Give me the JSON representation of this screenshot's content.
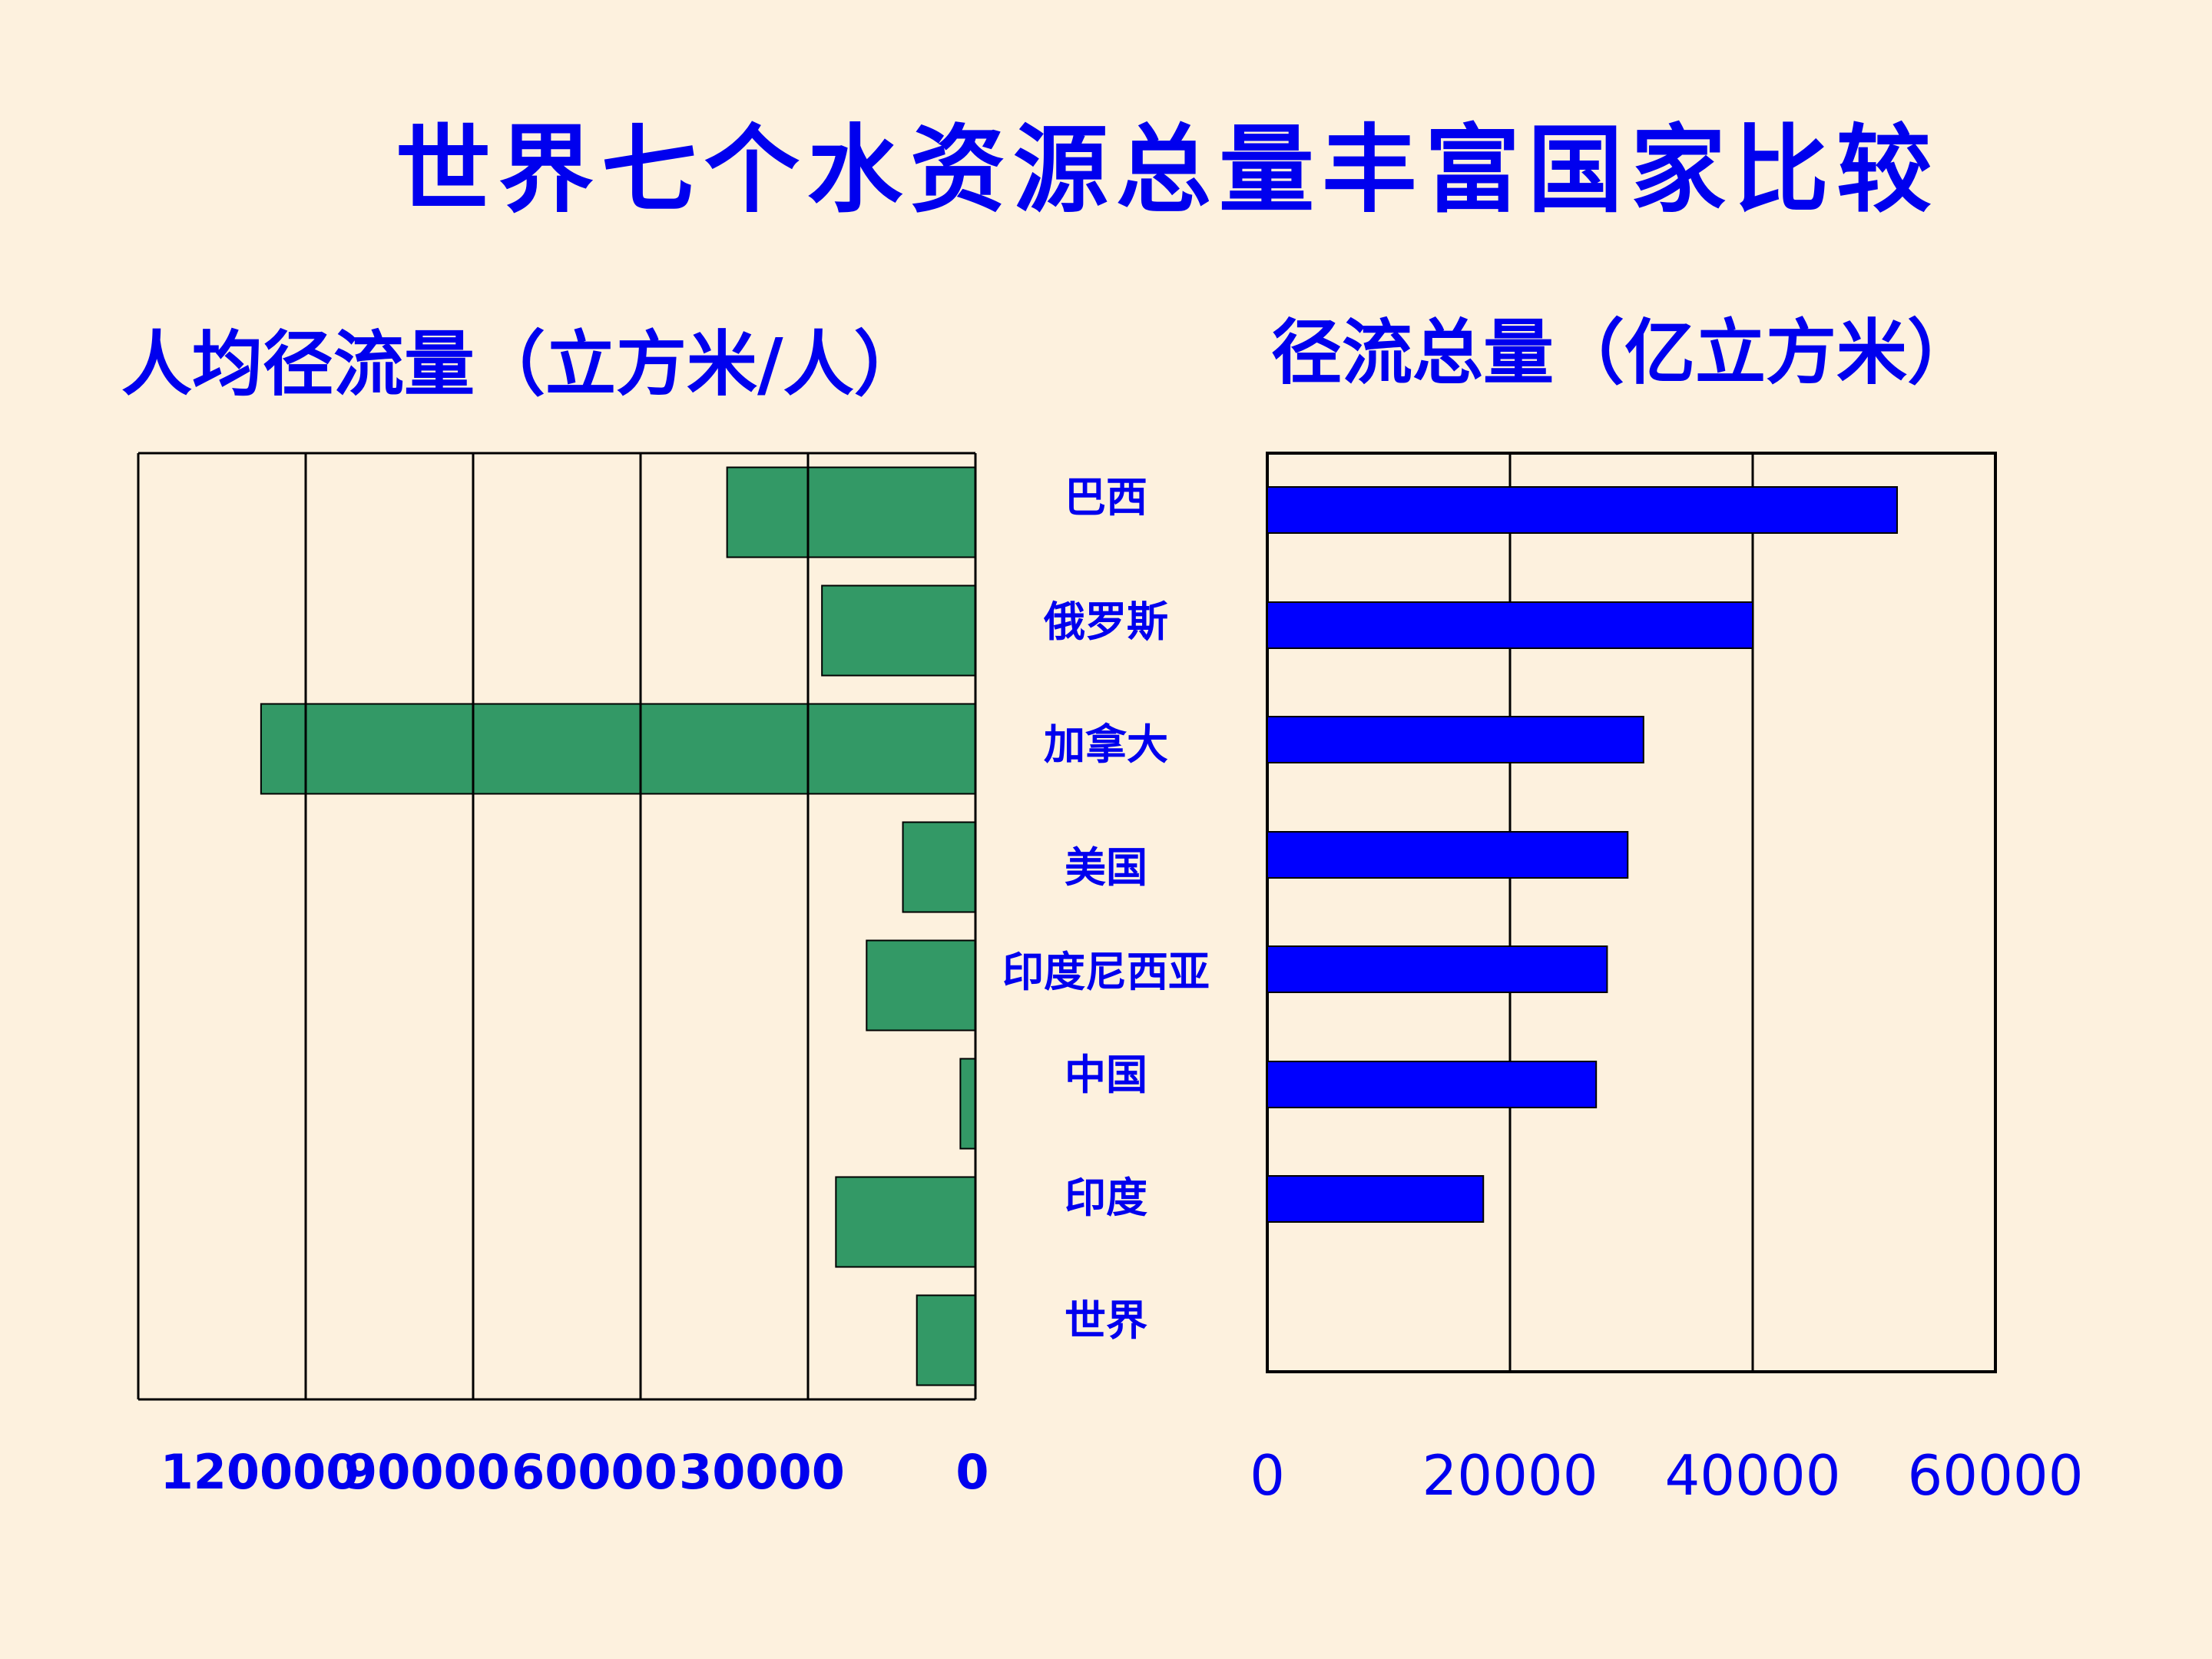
{
  "title": "世界七个水资源总量丰富国家比较",
  "chart_data": [
    {
      "type": "bar",
      "orientation": "horizontal",
      "direction": "right-to-left",
      "title": "人均径流量（立方米/人）",
      "categories": [
        "巴西",
        "俄罗斯",
        "加拿大",
        "美国",
        "印度尼西亚",
        "中国",
        "印度",
        "世界"
      ],
      "values": [
        44500,
        27500,
        128000,
        13000,
        19500,
        2700,
        25000,
        10500
      ],
      "xlim": [
        0,
        150000
      ],
      "ticks": [
        120000,
        90000,
        60000,
        30000,
        0
      ],
      "tick_labels": [
        "120000",
        "90000",
        "60000",
        "30000",
        "0"
      ],
      "bar_color": "#339966",
      "grid": true
    },
    {
      "type": "bar",
      "orientation": "horizontal",
      "title": "径流总量（亿立方米）",
      "categories": [
        "巴西",
        "俄罗斯",
        "加拿大",
        "美国",
        "印度尼西亚",
        "中国",
        "印度",
        "世界"
      ],
      "values": [
        51900,
        40000,
        31000,
        29700,
        28000,
        27100,
        17800,
        null
      ],
      "xlim": [
        0,
        60000
      ],
      "ticks": [
        0,
        20000,
        40000,
        60000
      ],
      "tick_labels": [
        "0",
        "20000",
        "40000",
        "60000"
      ],
      "bar_color": "#0000ff",
      "grid": true
    }
  ]
}
